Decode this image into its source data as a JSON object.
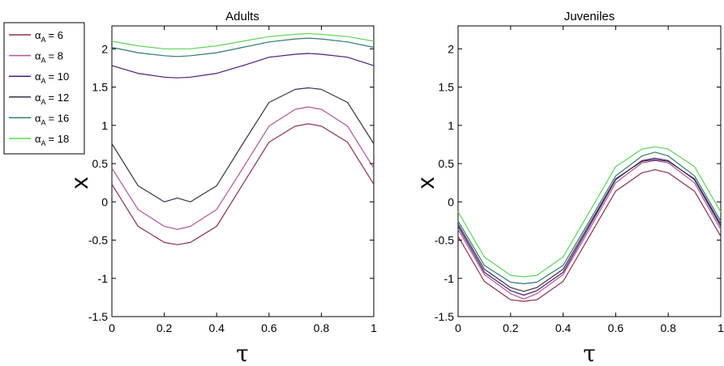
{
  "chart_data": [
    {
      "type": "line",
      "title": "Adults",
      "xlabel": "τ",
      "ylabel": "x",
      "xlim": [
        0,
        1
      ],
      "ylim": [
        -1.5,
        2.3
      ],
      "xticks": [
        "0",
        "0.2",
        "0.4",
        "0.6",
        "0.8",
        "1"
      ],
      "yticks": [
        "-1.5",
        "-1",
        "-0.5",
        "0",
        "0.5",
        "1",
        "1.5",
        "2"
      ],
      "grid": false,
      "series": [
        {
          "name": "6",
          "color": "#8c2f4a",
          "x": [
            0,
            0.1,
            0.2,
            0.25,
            0.3,
            0.4,
            0.5,
            0.6,
            0.7,
            0.75,
            0.8,
            0.9,
            1
          ],
          "y": [
            0.23,
            -0.32,
            -0.53,
            -0.56,
            -0.53,
            -0.32,
            0.23,
            0.78,
            0.99,
            1.02,
            0.99,
            0.78,
            0.23
          ]
        },
        {
          "name": "8",
          "color": "#b0559a",
          "x": [
            0,
            0.1,
            0.2,
            0.25,
            0.3,
            0.4,
            0.5,
            0.6,
            0.7,
            0.75,
            0.8,
            0.9,
            1
          ],
          "y": [
            0.44,
            -0.1,
            -0.32,
            -0.36,
            -0.32,
            -0.1,
            0.44,
            0.99,
            1.21,
            1.24,
            1.21,
            0.99,
            0.44
          ]
        },
        {
          "name": "10",
          "color": "#4b1c78",
          "x": [
            0,
            0.1,
            0.2,
            0.25,
            0.3,
            0.4,
            0.5,
            0.6,
            0.7,
            0.75,
            0.8,
            0.9,
            1
          ],
          "y": [
            1.78,
            1.68,
            1.63,
            1.62,
            1.63,
            1.68,
            1.78,
            1.89,
            1.93,
            1.94,
            1.93,
            1.89,
            1.78
          ]
        },
        {
          "name": "12",
          "color": "#3b3148",
          "x": [
            0,
            0.1,
            0.2,
            0.25,
            0.3,
            0.4,
            0.5,
            0.6,
            0.7,
            0.75,
            0.8,
            0.9,
            1
          ],
          "y": [
            0.76,
            0.21,
            0.0,
            0.05,
            0.0,
            0.21,
            0.76,
            1.3,
            1.47,
            1.49,
            1.47,
            1.3,
            0.76
          ]
        },
        {
          "name": "16",
          "color": "#2f7a6e",
          "x": [
            0,
            0.1,
            0.2,
            0.25,
            0.3,
            0.4,
            0.5,
            0.6,
            0.7,
            0.75,
            0.8,
            0.9,
            1
          ],
          "y": [
            2.02,
            1.95,
            1.91,
            1.9,
            1.91,
            1.95,
            2.02,
            2.09,
            2.13,
            2.14,
            2.13,
            2.09,
            2.02
          ]
        },
        {
          "name": "18",
          "color": "#5fd35a",
          "x": [
            0,
            0.1,
            0.2,
            0.25,
            0.3,
            0.4,
            0.5,
            0.6,
            0.7,
            0.75,
            0.8,
            0.9,
            1
          ],
          "y": [
            2.1,
            2.04,
            2.0,
            2.0,
            2.0,
            2.04,
            2.1,
            2.16,
            2.19,
            2.2,
            2.19,
            2.16,
            2.1
          ]
        }
      ],
      "legend": {
        "placement": "outside-left",
        "symbol": "α",
        "subscript": "A",
        "entries": [
          {
            "label": "= 6",
            "color": "#8c2f4a"
          },
          {
            "label": "= 8",
            "color": "#b0559a"
          },
          {
            "label": "= 10",
            "color": "#4b1c78"
          },
          {
            "label": "= 12",
            "color": "#3b3148"
          },
          {
            "label": "= 16",
            "color": "#2f7a6e"
          },
          {
            "label": "= 18",
            "color": "#5fd35a"
          }
        ]
      }
    },
    {
      "type": "line",
      "title": "Juveniles",
      "xlabel": "τ",
      "ylabel": "x",
      "xlim": [
        0,
        1
      ],
      "ylim": [
        -1.5,
        2.3
      ],
      "xticks": [
        "0",
        "0.2",
        "0.4",
        "0.6",
        "0.8",
        "1"
      ],
      "yticks": [
        "-1.5",
        "-1",
        "-0.5",
        "0",
        "0.5",
        "1",
        "1.5",
        "2"
      ],
      "grid": false,
      "series": [
        {
          "name": "6",
          "color": "#8c2f4a",
          "x": [
            0,
            0.1,
            0.2,
            0.25,
            0.3,
            0.4,
            0.5,
            0.6,
            0.7,
            0.75,
            0.8,
            0.9,
            1
          ],
          "y": [
            -0.45,
            -1.04,
            -1.28,
            -1.3,
            -1.28,
            -1.04,
            -0.45,
            0.14,
            0.38,
            0.42,
            0.38,
            0.14,
            -0.45
          ]
        },
        {
          "name": "8",
          "color": "#b0559a",
          "x": [
            0,
            0.1,
            0.2,
            0.25,
            0.3,
            0.4,
            0.5,
            0.6,
            0.7,
            0.75,
            0.8,
            0.9,
            1
          ],
          "y": [
            -0.36,
            -0.95,
            -1.2,
            -1.27,
            -1.2,
            -0.95,
            -0.36,
            0.25,
            0.51,
            0.54,
            0.51,
            0.25,
            -0.36
          ]
        },
        {
          "name": "10",
          "color": "#4b1c78",
          "x": [
            0,
            0.1,
            0.2,
            0.25,
            0.3,
            0.4,
            0.5,
            0.6,
            0.7,
            0.75,
            0.8,
            0.9,
            1
          ],
          "y": [
            -0.32,
            -0.92,
            -1.16,
            -1.22,
            -1.16,
            -0.92,
            -0.32,
            0.29,
            0.54,
            0.57,
            0.54,
            0.29,
            -0.32
          ]
        },
        {
          "name": "12",
          "color": "#3b3148",
          "x": [
            0,
            0.1,
            0.2,
            0.25,
            0.3,
            0.4,
            0.5,
            0.6,
            0.7,
            0.75,
            0.8,
            0.9,
            1
          ],
          "y": [
            -0.29,
            -0.88,
            -1.12,
            -1.17,
            -1.12,
            -0.88,
            -0.29,
            0.3,
            0.53,
            0.55,
            0.53,
            0.3,
            -0.29
          ]
        },
        {
          "name": "16",
          "color": "#2f7a6e",
          "x": [
            0,
            0.1,
            0.2,
            0.25,
            0.3,
            0.4,
            0.5,
            0.6,
            0.7,
            0.75,
            0.8,
            0.9,
            1
          ],
          "y": [
            -0.25,
            -0.83,
            -1.05,
            -1.07,
            -1.05,
            -0.83,
            -0.25,
            0.34,
            0.6,
            0.65,
            0.6,
            0.34,
            -0.25
          ]
        },
        {
          "name": "18",
          "color": "#5fd35a",
          "x": [
            0,
            0.1,
            0.2,
            0.25,
            0.3,
            0.4,
            0.5,
            0.6,
            0.7,
            0.75,
            0.8,
            0.9,
            1
          ],
          "y": [
            -0.13,
            -0.72,
            -0.96,
            -0.98,
            -0.96,
            -0.72,
            -0.13,
            0.46,
            0.69,
            0.72,
            0.69,
            0.46,
            -0.13
          ]
        }
      ]
    }
  ]
}
